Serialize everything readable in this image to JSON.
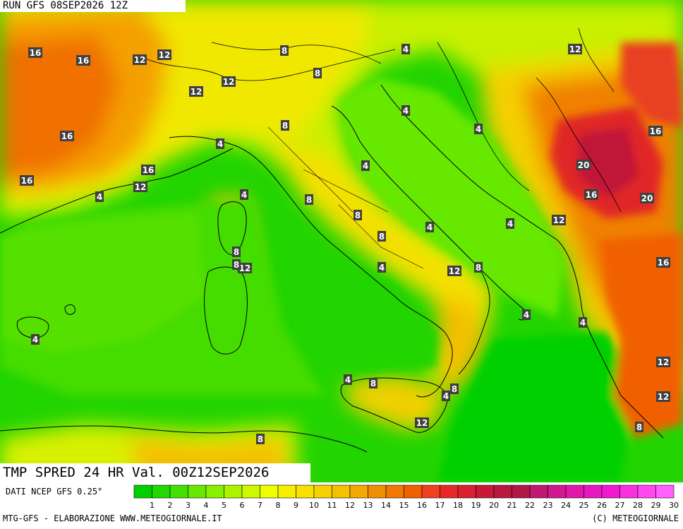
{
  "header": {
    "run_title": "RUN GFS 08SEP2026 12Z"
  },
  "field_title": "TMP SPRED 24 HR Val. 00Z12SEP2026",
  "source_text": "DATI NCEP GFS 0.25°",
  "footer": {
    "left": "MTG-GFS - ELABORAZIONE WWW.METEOGIORNALE.IT",
    "right": "(C) METEOGIORNALE"
  },
  "legend": {
    "labels": [
      "1",
      "2",
      "3",
      "4",
      "5",
      "6",
      "7",
      "8",
      "9",
      "10",
      "11",
      "12",
      "13",
      "14",
      "15",
      "16",
      "17",
      "18",
      "19",
      "20",
      "21",
      "22",
      "23",
      "24",
      "25",
      "26",
      "27",
      "28",
      "29",
      "30"
    ],
    "colors": [
      "#00d000",
      "#22d800",
      "#44e000",
      "#66e800",
      "#88f000",
      "#aaf400",
      "#ccf800",
      "#eeff00",
      "#f4f000",
      "#f8e000",
      "#f8d000",
      "#f4c000",
      "#f4a800",
      "#f09000",
      "#f07800",
      "#f06000",
      "#f04020",
      "#e82828",
      "#d82030",
      "#c81838",
      "#b81840",
      "#b01848",
      "#c01870",
      "#d01890",
      "#e018a8",
      "#e818c0",
      "#f018d0",
      "#f830e0",
      "#ff48f0",
      "#ff60ff"
    ]
  },
  "map_labels": [
    {
      "v": "16"
    },
    {
      "v": "16"
    },
    {
      "v": "12"
    },
    {
      "v": "12"
    },
    {
      "v": "8"
    },
    {
      "v": "4"
    },
    {
      "v": "12"
    },
    {
      "v": "8"
    },
    {
      "v": "12"
    },
    {
      "v": "12"
    },
    {
      "v": "16"
    },
    {
      "v": "4"
    },
    {
      "v": "4"
    },
    {
      "v": "8"
    },
    {
      "v": "4"
    },
    {
      "v": "16"
    },
    {
      "v": "4"
    },
    {
      "v": "20"
    },
    {
      "v": "16"
    },
    {
      "v": "16"
    },
    {
      "v": "16"
    },
    {
      "v": "20"
    },
    {
      "v": "12"
    },
    {
      "v": "4"
    },
    {
      "v": "8"
    },
    {
      "v": "8"
    },
    {
      "v": "12"
    },
    {
      "v": "4"
    },
    {
      "v": "8"
    },
    {
      "v": "8"
    },
    {
      "v": "4"
    },
    {
      "v": "16"
    },
    {
      "v": "12"
    },
    {
      "v": "8"
    },
    {
      "v": "4"
    },
    {
      "v": "4"
    },
    {
      "v": "4"
    },
    {
      "v": "4"
    },
    {
      "v": "12"
    },
    {
      "v": "4"
    },
    {
      "v": "8"
    },
    {
      "v": "8"
    },
    {
      "v": "4"
    },
    {
      "v": "12"
    },
    {
      "v": "4"
    },
    {
      "v": "8"
    },
    {
      "v": "8"
    },
    {
      "v": "12"
    },
    {
      "v": "12"
    },
    {
      "v": "8"
    }
  ],
  "colors": {
    "sea_low": "#00d000",
    "land_mid": "#f4e800",
    "land_high": "#f06000",
    "hot_core": "#c01840"
  }
}
